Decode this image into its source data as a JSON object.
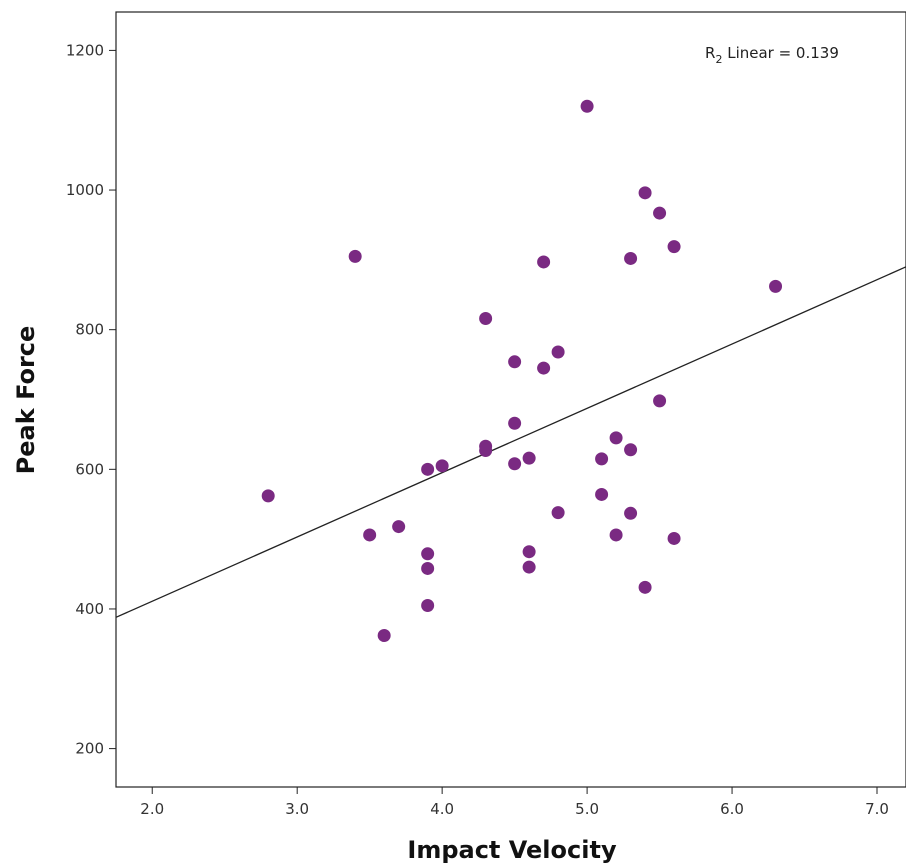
{
  "chart_data": {
    "type": "scatter",
    "xlabel": "Impact Velocity",
    "ylabel": "Peak Force",
    "xlim": [
      1.75,
      7.2
    ],
    "ylim": [
      145,
      1255
    ],
    "x_ticks": [
      2.0,
      3.0,
      4.0,
      5.0,
      6.0,
      7.0
    ],
    "x_tick_labels": [
      "2.0",
      "3.0",
      "4.0",
      "5.0",
      "6.0",
      "7.0"
    ],
    "y_ticks": [
      200,
      400,
      600,
      800,
      1000,
      1200
    ],
    "y_tick_labels": [
      "200",
      "400",
      "600",
      "800",
      "1000",
      "1200"
    ],
    "grid": false,
    "point_color": "#7a2a82",
    "annotation": {
      "prefix": "R",
      "subscript": "2",
      "suffix": " Linear = 0.139"
    },
    "fit_line": {
      "x": [
        1.75,
        7.2
      ],
      "y": [
        388,
        890
      ]
    },
    "points": [
      {
        "x": 2.8,
        "y": 562
      },
      {
        "x": 3.4,
        "y": 905
      },
      {
        "x": 3.5,
        "y": 506
      },
      {
        "x": 3.6,
        "y": 362
      },
      {
        "x": 3.7,
        "y": 518
      },
      {
        "x": 3.9,
        "y": 600
      },
      {
        "x": 3.9,
        "y": 479
      },
      {
        "x": 3.9,
        "y": 458
      },
      {
        "x": 3.9,
        "y": 405
      },
      {
        "x": 4.0,
        "y": 605
      },
      {
        "x": 4.3,
        "y": 816
      },
      {
        "x": 4.3,
        "y": 633
      },
      {
        "x": 4.3,
        "y": 627
      },
      {
        "x": 4.5,
        "y": 754
      },
      {
        "x": 4.5,
        "y": 666
      },
      {
        "x": 4.5,
        "y": 608
      },
      {
        "x": 4.6,
        "y": 616
      },
      {
        "x": 4.6,
        "y": 482
      },
      {
        "x": 4.6,
        "y": 460
      },
      {
        "x": 4.7,
        "y": 897
      },
      {
        "x": 4.7,
        "y": 745
      },
      {
        "x": 4.8,
        "y": 768
      },
      {
        "x": 4.8,
        "y": 538
      },
      {
        "x": 5.0,
        "y": 1120
      },
      {
        "x": 5.1,
        "y": 615
      },
      {
        "x": 5.1,
        "y": 564
      },
      {
        "x": 5.2,
        "y": 645
      },
      {
        "x": 5.2,
        "y": 506
      },
      {
        "x": 5.3,
        "y": 902
      },
      {
        "x": 5.3,
        "y": 628
      },
      {
        "x": 5.3,
        "y": 537
      },
      {
        "x": 5.4,
        "y": 996
      },
      {
        "x": 5.4,
        "y": 431
      },
      {
        "x": 5.5,
        "y": 967
      },
      {
        "x": 5.5,
        "y": 698
      },
      {
        "x": 5.6,
        "y": 919
      },
      {
        "x": 5.6,
        "y": 501
      },
      {
        "x": 6.3,
        "y": 862
      }
    ]
  }
}
